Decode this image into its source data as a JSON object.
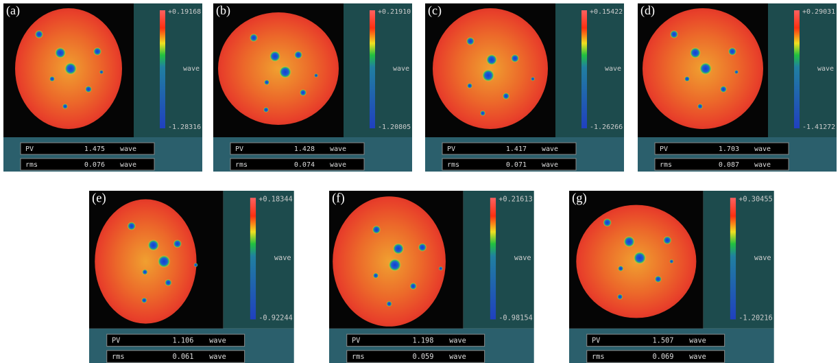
{
  "panels": [
    {
      "label": "(a)",
      "max": "+0.19168",
      "min": "-1.28316",
      "unit": "wave",
      "pv": {
        "name": "PV",
        "value": "1.475",
        "unit": "wave"
      },
      "rms": {
        "name": "rms",
        "value": "0.076",
        "unit": "wave"
      }
    },
    {
      "label": "(b)",
      "max": "+0.21910",
      "min": "-1.20805",
      "unit": "wave",
      "pv": {
        "name": "PV",
        "value": "1.428",
        "unit": "wave"
      },
      "rms": {
        "name": "rms",
        "value": "0.074",
        "unit": "wave"
      }
    },
    {
      "label": "(c)",
      "max": "+0.15422",
      "min": "-1.26266",
      "unit": "wave",
      "pv": {
        "name": "PV",
        "value": "1.417",
        "unit": "wave"
      },
      "rms": {
        "name": "rms",
        "value": "0.071",
        "unit": "wave"
      }
    },
    {
      "label": "(d)",
      "max": "+0.29031",
      "min": "-1.41272",
      "unit": "wave",
      "pv": {
        "name": "PV",
        "value": "1.703",
        "unit": "wave"
      },
      "rms": {
        "name": "rms",
        "value": "0.087",
        "unit": "wave"
      }
    },
    {
      "label": "(e)",
      "max": "+0.18344",
      "min": "-0.92244",
      "unit": "wave",
      "pv": {
        "name": "PV",
        "value": "1.106",
        "unit": "wave"
      },
      "rms": {
        "name": "rms",
        "value": "0.061",
        "unit": "wave"
      }
    },
    {
      "label": "(f)",
      "max": "+0.21613",
      "min": "-0.98154",
      "unit": "wave",
      "pv": {
        "name": "PV",
        "value": "1.198",
        "unit": "wave"
      },
      "rms": {
        "name": "rms",
        "value": "0.059",
        "unit": "wave"
      }
    },
    {
      "label": "(g)",
      "max": "+0.30455",
      "min": "-1.20216",
      "unit": "wave",
      "pv": {
        "name": "PV",
        "value": "1.507",
        "unit": "wave"
      },
      "rms": {
        "name": "rms",
        "value": "0.069",
        "unit": "wave"
      }
    }
  ]
}
